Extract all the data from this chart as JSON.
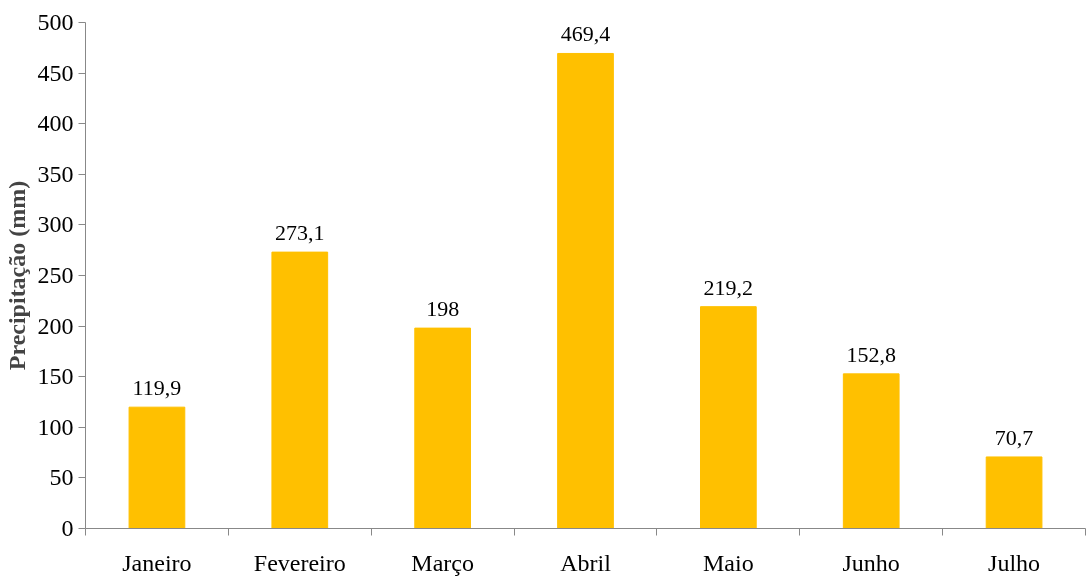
{
  "chart_data": {
    "type": "bar",
    "ylabel": "Precipitação (mm)",
    "categories": [
      "Janeiro",
      "Fevereiro",
      "Março",
      "Abril",
      "Maio",
      "Junho",
      "Julho"
    ],
    "values": [
      119.9,
      273.1,
      198,
      469.4,
      219.2,
      152.8,
      70.7
    ],
    "value_labels": [
      "119,9",
      "273,1",
      "198",
      "469,4",
      "219,2",
      "152,8",
      "70,7"
    ],
    "color": "#ffc000",
    "ylim": [
      0,
      500
    ],
    "yticks": [
      0,
      50,
      100,
      150,
      200,
      250,
      300,
      350,
      400,
      450,
      500
    ],
    "grid": false
  }
}
